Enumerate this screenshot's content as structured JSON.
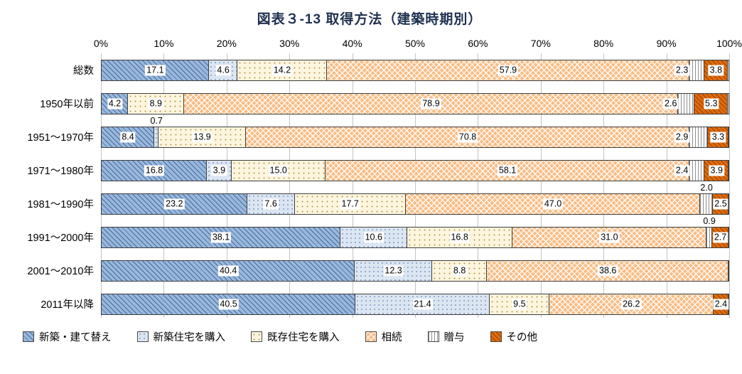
{
  "chart_data": {
    "type": "bar",
    "variant": "horizontal-stacked-100pct",
    "title": "図表３-13 取得方法（建築時期別）",
    "categories": [
      "総数",
      "1950年以前",
      "1951～1970年",
      "1971～1980年",
      "1981～1990年",
      "1991～2000年",
      "2001～2010年",
      "2011年以降"
    ],
    "series": [
      {
        "name": "新築・建て替え",
        "color": "#9ab7dc",
        "pattern": "diagonal",
        "values": [
          17.1,
          4.2,
          8.4,
          16.8,
          23.2,
          38.1,
          40.4,
          40.5
        ]
      },
      {
        "name": "新築住宅を購入",
        "color": "#dce6f2",
        "pattern": "dots-light",
        "values": [
          4.6,
          null,
          0.7,
          3.9,
          7.6,
          10.6,
          12.3,
          21.4
        ]
      },
      {
        "name": "既存住宅を購入",
        "color": "#fdf5dd",
        "pattern": "dots",
        "values": [
          14.2,
          8.9,
          13.9,
          15.0,
          17.7,
          16.8,
          8.8,
          9.5
        ]
      },
      {
        "name": "相続",
        "color": "#f9bd85",
        "pattern": "crosshatch",
        "values": [
          57.9,
          78.9,
          70.8,
          58.1,
          47.0,
          31.0,
          38.6,
          26.2
        ]
      },
      {
        "name": "贈与",
        "color": "#ffffff",
        "pattern": "vlines",
        "values": [
          2.3,
          2.6,
          2.9,
          2.4,
          2.0,
          0.9,
          null,
          null
        ]
      },
      {
        "name": "その他",
        "color": "#e26b0a",
        "pattern": "diagonal-dark",
        "values": [
          3.8,
          5.3,
          3.3,
          3.9,
          2.5,
          2.7,
          null,
          2.4
        ]
      }
    ],
    "axis": {
      "min": 0,
      "max": 100,
      "ticks": [
        "0%",
        "10%",
        "20%",
        "30%",
        "40%",
        "50%",
        "60%",
        "70%",
        "80%",
        "90%",
        "100%"
      ],
      "grid": true
    },
    "legend_position": "bottom",
    "colors": {
      "title": "#1f3050",
      "gridline": "#c3c3c3",
      "bar_border": "#3f3f3f"
    }
  }
}
